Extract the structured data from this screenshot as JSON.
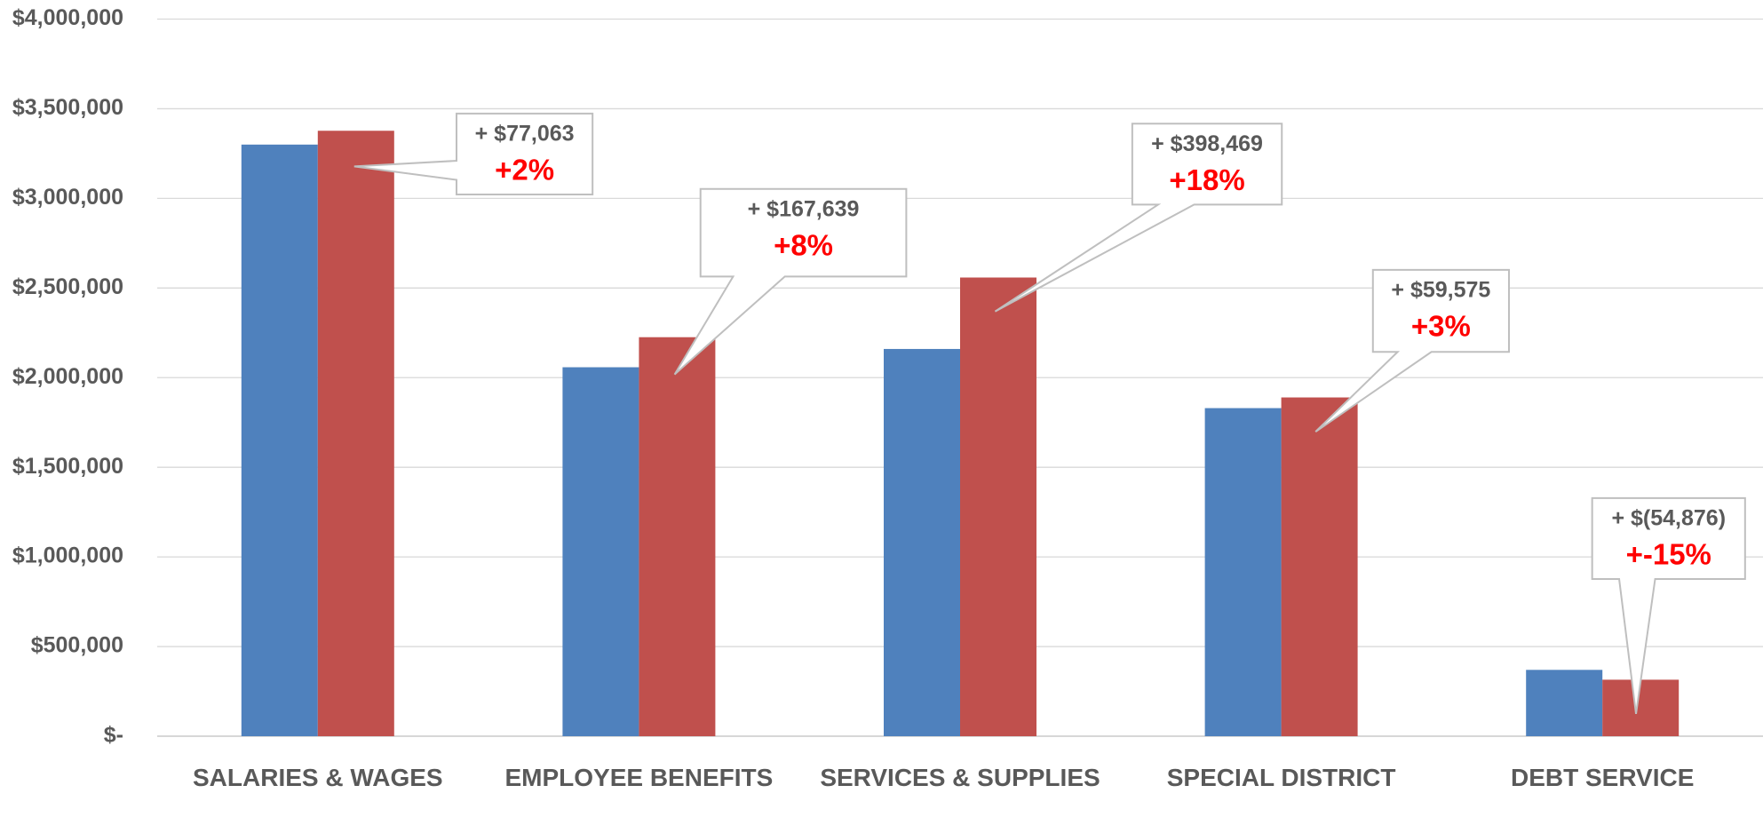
{
  "chart_data": {
    "type": "bar",
    "categories": [
      "SALARIES & WAGES",
      "EMPLOYEE BENEFITS",
      "SERVICES & SUPPLIES",
      "SPECIAL DISTRICT",
      "DEBT SERVICE"
    ],
    "series": [
      {
        "color": "#4f81bd",
        "values": [
          3300000,
          2058000,
          2160000,
          1830000,
          370000
        ]
      },
      {
        "color": "#c0504d",
        "values": [
          3377063,
          2225639,
          2558469,
          1889575,
          315124
        ]
      }
    ],
    "ylim": [
      0,
      4000000
    ],
    "yticks": [
      {
        "value": 0,
        "label": "$-"
      },
      {
        "value": 500000,
        "label": "$500,000"
      },
      {
        "value": 1000000,
        "label": "$1,000,000"
      },
      {
        "value": 1500000,
        "label": "$1,500,000"
      },
      {
        "value": 2000000,
        "label": "$2,000,000"
      },
      {
        "value": 2500000,
        "label": "$2,500,000"
      },
      {
        "value": 3000000,
        "label": "$3,000,000"
      },
      {
        "value": 3500000,
        "label": "$3,500,000"
      },
      {
        "value": 4000000,
        "label": "$4,000,000"
      }
    ],
    "grid": true,
    "annotations": [
      {
        "amount": "+ $77,063",
        "change": "+2%"
      },
      {
        "amount": "+ $167,639",
        "change": "+8%"
      },
      {
        "amount": "+ $398,469",
        "change": "+18%"
      },
      {
        "amount": "+ $59,575",
        "change": "+3%"
      },
      {
        "amount": "+ $(54,876)",
        "change": "+-15%"
      }
    ]
  }
}
